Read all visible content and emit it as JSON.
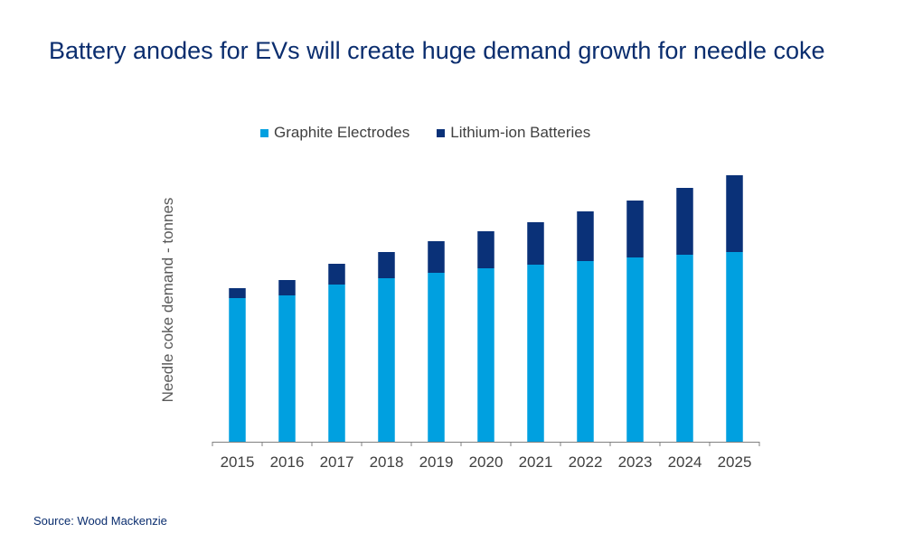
{
  "title": "Battery anodes for EVs will create huge demand growth for needle coke",
  "source": "Source: Wood Mackenzie",
  "chart_data": {
    "type": "bar",
    "stacked": true,
    "title": "Battery anodes for EVs will create huge demand growth for needle coke",
    "xlabel": "",
    "ylabel": "Needle coke demand - tonnes",
    "ylim": [
      0,
      300
    ],
    "y_tick_labels_shown": false,
    "grid": false,
    "legend_position": "top",
    "categories": [
      "2015",
      "2016",
      "2017",
      "2018",
      "2019",
      "2020",
      "2021",
      "2022",
      "2023",
      "2024",
      "2025"
    ],
    "series": [
      {
        "name": "Graphite Electrodes",
        "color": "#00a0e0",
        "values": [
          159,
          162,
          174,
          181,
          187,
          192,
          196,
          200,
          204,
          207,
          210
        ]
      },
      {
        "name": "Lithium-ion Batteries",
        "color": "#0a3178",
        "values": [
          11,
          17,
          23,
          29,
          35,
          41,
          47,
          55,
          63,
          74,
          85
        ]
      }
    ]
  }
}
